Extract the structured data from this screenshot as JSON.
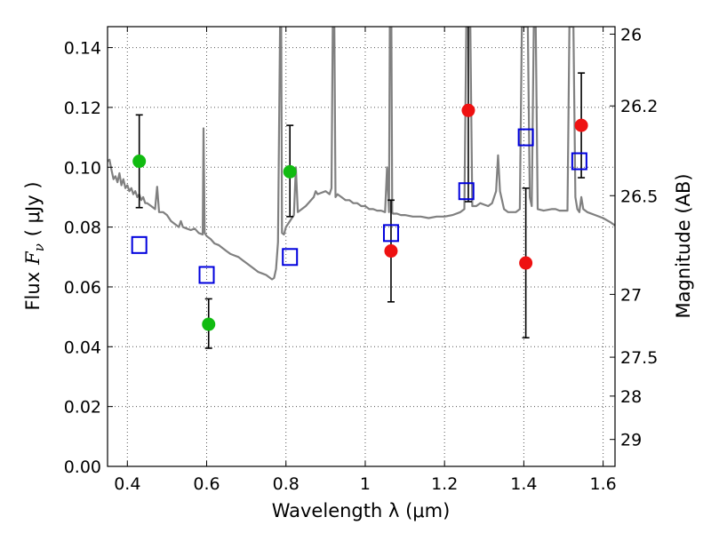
{
  "chart_data": {
    "type": "scatter",
    "xlabel": "Wavelength  λ (μm)",
    "ylabel_prefix": "Flux",
    "ylabel_symbol": "F",
    "ylabel_subscript": "ν",
    "ylabel_unit": "( μJy )",
    "y2label": "Magnitude (AB)",
    "xlim": [
      0.35,
      1.63
    ],
    "ylim": [
      0.0,
      0.147
    ],
    "grid": true,
    "xticks": [
      0.4,
      0.6,
      0.8,
      1.0,
      1.2,
      1.4,
      1.6
    ],
    "xtick_labels": [
      "0.4",
      "0.6",
      "0.8",
      "1",
      "1.2",
      "1.4",
      "1.6"
    ],
    "yticks": [
      0.0,
      0.02,
      0.04,
      0.06,
      0.08,
      0.1,
      0.12,
      0.14
    ],
    "ytick_labels": [
      "0.00",
      "0.02",
      "0.04",
      "0.06",
      "0.08",
      "0.10",
      "0.12",
      "0.14"
    ],
    "y2ticks": [
      {
        "label": "26",
        "flux": 0.1445
      },
      {
        "label": "26.2",
        "flux": 0.1205
      },
      {
        "label": "26.5",
        "flux": 0.0905
      },
      {
        "label": "27",
        "flux": 0.0575
      },
      {
        "label": "27.5",
        "flux": 0.0365
      },
      {
        "label": "28",
        "flux": 0.0235
      },
      {
        "label": "29",
        "flux": 0.009
      }
    ],
    "series": [
      {
        "name": "model spectrum",
        "kind": "line",
        "color": "#808080",
        "points": [
          [
            0.35,
            0.102
          ],
          [
            0.355,
            0.1025
          ],
          [
            0.36,
            0.099
          ],
          [
            0.365,
            0.096
          ],
          [
            0.37,
            0.097
          ],
          [
            0.375,
            0.095
          ],
          [
            0.38,
            0.098
          ],
          [
            0.385,
            0.094
          ],
          [
            0.39,
            0.096
          ],
          [
            0.395,
            0.093
          ],
          [
            0.4,
            0.094
          ],
          [
            0.405,
            0.092
          ],
          [
            0.41,
            0.093
          ],
          [
            0.415,
            0.091
          ],
          [
            0.42,
            0.092
          ],
          [
            0.425,
            0.09
          ],
          [
            0.43,
            0.091
          ],
          [
            0.435,
            0.089
          ],
          [
            0.44,
            0.09
          ],
          [
            0.445,
            0.088
          ],
          [
            0.45,
            0.088
          ],
          [
            0.46,
            0.087
          ],
          [
            0.47,
            0.086
          ],
          [
            0.475,
            0.0935
          ],
          [
            0.48,
            0.085
          ],
          [
            0.49,
            0.085
          ],
          [
            0.5,
            0.084
          ],
          [
            0.51,
            0.082
          ],
          [
            0.52,
            0.081
          ],
          [
            0.53,
            0.08
          ],
          [
            0.535,
            0.082
          ],
          [
            0.54,
            0.08
          ],
          [
            0.55,
            0.0795
          ],
          [
            0.56,
            0.079
          ],
          [
            0.57,
            0.0795
          ],
          [
            0.58,
            0.078
          ],
          [
            0.59,
            0.0775
          ],
          [
            0.592,
            0.113
          ],
          [
            0.595,
            0.078
          ],
          [
            0.6,
            0.077
          ],
          [
            0.61,
            0.076
          ],
          [
            0.62,
            0.0745
          ],
          [
            0.63,
            0.074
          ],
          [
            0.64,
            0.073
          ],
          [
            0.65,
            0.072
          ],
          [
            0.66,
            0.071
          ],
          [
            0.67,
            0.0705
          ],
          [
            0.68,
            0.07
          ],
          [
            0.69,
            0.069
          ],
          [
            0.7,
            0.068
          ],
          [
            0.71,
            0.067
          ],
          [
            0.72,
            0.066
          ],
          [
            0.73,
            0.065
          ],
          [
            0.74,
            0.0645
          ],
          [
            0.75,
            0.064
          ],
          [
            0.76,
            0.063
          ],
          [
            0.765,
            0.0625
          ],
          [
            0.77,
            0.063
          ],
          [
            0.775,
            0.066
          ],
          [
            0.78,
            0.075
          ],
          [
            0.785,
            0.147
          ],
          [
            0.788,
            0.147
          ],
          [
            0.79,
            0.078
          ],
          [
            0.795,
            0.0775
          ],
          [
            0.8,
            0.08
          ],
          [
            0.805,
            0.081
          ],
          [
            0.81,
            0.082
          ],
          [
            0.815,
            0.083
          ],
          [
            0.82,
            0.084
          ],
          [
            0.825,
            0.1
          ],
          [
            0.83,
            0.085
          ],
          [
            0.84,
            0.086
          ],
          [
            0.85,
            0.087
          ],
          [
            0.86,
            0.0885
          ],
          [
            0.87,
            0.09
          ],
          [
            0.875,
            0.092
          ],
          [
            0.88,
            0.091
          ],
          [
            0.89,
            0.0915
          ],
          [
            0.9,
            0.092
          ],
          [
            0.91,
            0.091
          ],
          [
            0.915,
            0.093
          ],
          [
            0.918,
            0.147
          ],
          [
            0.922,
            0.147
          ],
          [
            0.925,
            0.09
          ],
          [
            0.93,
            0.091
          ],
          [
            0.94,
            0.09
          ],
          [
            0.95,
            0.089
          ],
          [
            0.96,
            0.089
          ],
          [
            0.97,
            0.088
          ],
          [
            0.98,
            0.088
          ],
          [
            0.99,
            0.087
          ],
          [
            1.0,
            0.087
          ],
          [
            1.01,
            0.086
          ],
          [
            1.02,
            0.086
          ],
          [
            1.03,
            0.0855
          ],
          [
            1.04,
            0.0855
          ],
          [
            1.05,
            0.085
          ],
          [
            1.055,
            0.1
          ],
          [
            1.06,
            0.085
          ],
          [
            1.062,
            0.147
          ],
          [
            1.066,
            0.147
          ],
          [
            1.068,
            0.085
          ],
          [
            1.07,
            0.0845
          ],
          [
            1.08,
            0.0845
          ],
          [
            1.09,
            0.084
          ],
          [
            1.1,
            0.084
          ],
          [
            1.12,
            0.0835
          ],
          [
            1.14,
            0.0835
          ],
          [
            1.16,
            0.083
          ],
          [
            1.18,
            0.0835
          ],
          [
            1.2,
            0.0835
          ],
          [
            1.22,
            0.084
          ],
          [
            1.24,
            0.085
          ],
          [
            1.25,
            0.086
          ],
          [
            1.255,
            0.147
          ],
          [
            1.265,
            0.147
          ],
          [
            1.27,
            0.087
          ],
          [
            1.28,
            0.087
          ],
          [
            1.29,
            0.088
          ],
          [
            1.3,
            0.0875
          ],
          [
            1.31,
            0.087
          ],
          [
            1.32,
            0.088
          ],
          [
            1.33,
            0.092
          ],
          [
            1.335,
            0.104
          ],
          [
            1.34,
            0.092
          ],
          [
            1.35,
            0.086
          ],
          [
            1.36,
            0.085
          ],
          [
            1.38,
            0.085
          ],
          [
            1.39,
            0.086
          ],
          [
            1.395,
            0.147
          ],
          [
            1.41,
            0.147
          ],
          [
            1.415,
            0.09
          ],
          [
            1.42,
            0.087
          ],
          [
            1.425,
            0.147
          ],
          [
            1.43,
            0.147
          ],
          [
            1.435,
            0.086
          ],
          [
            1.45,
            0.0855
          ],
          [
            1.47,
            0.086
          ],
          [
            1.48,
            0.086
          ],
          [
            1.49,
            0.0855
          ],
          [
            1.5,
            0.0855
          ],
          [
            1.51,
            0.0855
          ],
          [
            1.515,
            0.147
          ],
          [
            1.525,
            0.147
          ],
          [
            1.53,
            0.09
          ],
          [
            1.535,
            0.086
          ],
          [
            1.54,
            0.085
          ],
          [
            1.545,
            0.09
          ],
          [
            1.55,
            0.086
          ],
          [
            1.56,
            0.085
          ],
          [
            1.58,
            0.084
          ],
          [
            1.6,
            0.083
          ],
          [
            1.62,
            0.0815
          ],
          [
            1.63,
            0.0805
          ]
        ]
      },
      {
        "name": "green photometry",
        "kind": "points",
        "marker": "circle",
        "color": "#11bb11",
        "points": [
          {
            "x": 0.43,
            "y": 0.102,
            "yerr_low": 0.0155,
            "yerr_high": 0.0155
          },
          {
            "x": 0.605,
            "y": 0.0475,
            "yerr_low": 0.008,
            "yerr_high": 0.0085
          },
          {
            "x": 0.81,
            "y": 0.0985,
            "yerr_low": 0.015,
            "yerr_high": 0.0155
          }
        ]
      },
      {
        "name": "red photometry",
        "kind": "points",
        "marker": "circle",
        "color": "#ee1111",
        "points": [
          {
            "x": 1.065,
            "y": 0.072,
            "yerr_low": 0.017,
            "yerr_high": 0.017
          },
          {
            "x": 1.26,
            "y": 0.119,
            "yerr_low": 0.0305,
            "yerr_high": 0.029
          },
          {
            "x": 1.405,
            "y": 0.068,
            "yerr_low": 0.025,
            "yerr_high": 0.025
          },
          {
            "x": 1.545,
            "y": 0.114,
            "yerr_low": 0.0175,
            "yerr_high": 0.0175
          }
        ]
      },
      {
        "name": "model photometry",
        "kind": "points",
        "marker": "open-square",
        "color": "#0000dd",
        "points": [
          {
            "x": 0.43,
            "y": 0.074
          },
          {
            "x": 0.6,
            "y": 0.064
          },
          {
            "x": 0.81,
            "y": 0.07
          },
          {
            "x": 1.065,
            "y": 0.078
          },
          {
            "x": 1.255,
            "y": 0.092
          },
          {
            "x": 1.405,
            "y": 0.11
          },
          {
            "x": 1.54,
            "y": 0.102
          }
        ]
      }
    ]
  }
}
